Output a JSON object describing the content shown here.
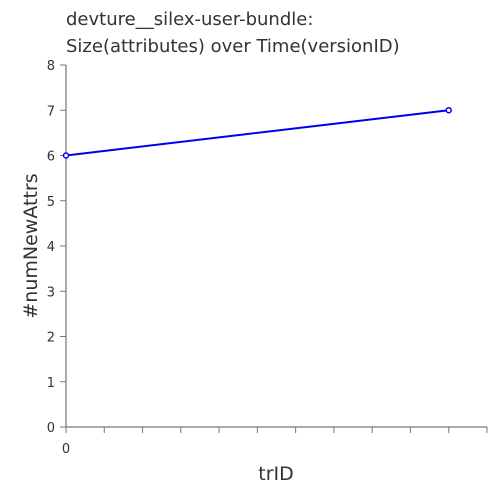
{
  "chart_data": {
    "type": "line",
    "title_lines": [
      "devture__silex-user-bundle:",
      "Size(attributes) over Time(versionID)"
    ],
    "xlabel": "trID",
    "ylabel": "#numNewAttrs",
    "x": [
      0,
      1
    ],
    "series": [
      {
        "values": [
          6,
          7
        ]
      }
    ],
    "xlim": [
      0,
      1.1
    ],
    "ylim": [
      0,
      8
    ],
    "yticks": [
      0,
      1,
      2,
      3,
      4,
      5,
      6,
      7,
      8
    ],
    "xtick_labels": [
      "0"
    ],
    "grid": false,
    "colors": {
      "line": "#0000ee",
      "axis": "#555555",
      "text": "#333333"
    }
  }
}
